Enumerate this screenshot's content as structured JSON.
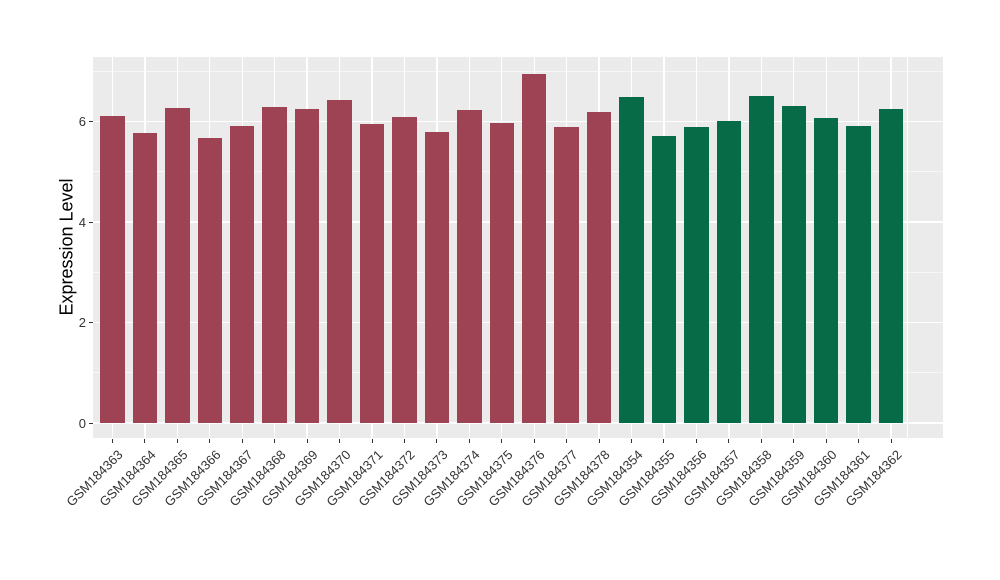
{
  "chart_data": {
    "type": "bar",
    "title": "",
    "xlabel": "",
    "ylabel": "Expression Level",
    "ylim": [
      0,
      7.28
    ],
    "yticks": [
      0,
      2,
      4,
      6
    ],
    "yticks_minor": [
      1,
      3,
      5,
      7
    ],
    "grid": "on",
    "legend_position": "none",
    "categories": [
      "GSM184363",
      "GSM184364",
      "GSM184365",
      "GSM184366",
      "GSM184367",
      "GSM184368",
      "GSM184369",
      "GSM184370",
      "GSM184371",
      "GSM184372",
      "GSM184373",
      "GSM184374",
      "GSM184375",
      "GSM184376",
      "GSM184377",
      "GSM184378",
      "GSM184354",
      "GSM184355",
      "GSM184356",
      "GSM184357",
      "GSM184358",
      "GSM184359",
      "GSM184360",
      "GSM184361",
      "GSM184362"
    ],
    "values": [
      6.11,
      5.78,
      6.27,
      5.68,
      5.92,
      6.29,
      6.25,
      6.43,
      5.96,
      6.08,
      5.8,
      6.23,
      5.97,
      6.95,
      5.9,
      6.19,
      6.49,
      5.71,
      5.9,
      6.01,
      6.51,
      6.31,
      6.06,
      5.91,
      6.25
    ],
    "bar_group": [
      0,
      0,
      0,
      0,
      0,
      0,
      0,
      0,
      0,
      0,
      0,
      0,
      0,
      0,
      0,
      0,
      1,
      1,
      1,
      1,
      1,
      1,
      1,
      1,
      1
    ],
    "group_colors": [
      "#9E4354",
      "#076B47"
    ]
  },
  "style": {
    "figure_bg": "#FFFFFF",
    "panel_bg": "#EBEBEB",
    "grid_color": "#FFFFFF",
    "tick_color": "#333333",
    "axis_text_color": "#333333",
    "axis_title_color": "#000000"
  }
}
